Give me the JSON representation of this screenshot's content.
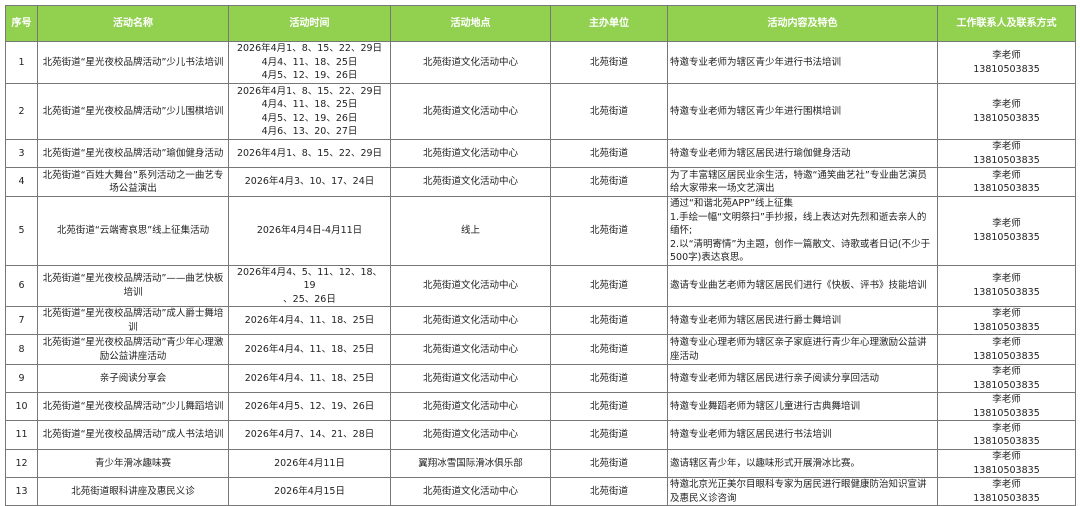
{
  "header_color": "#92d050",
  "columns": [
    "序号",
    "活动名称",
    "活动时间",
    "活动地点",
    "主办单位",
    "活动内容及特色",
    "工作联系人及联系方式"
  ],
  "rows": [
    {
      "no": "1",
      "name": "北苑街道“星光夜校品牌活动”少儿书法培训",
      "time": "2026年4月1、8、15、22、29日\n4月4、11、18、25日\n4月5、12、19、26日",
      "place": "北苑街道文化活动中心",
      "org": "北苑街道",
      "content": "特邀专业老师为辖区青少年进行书法培训",
      "contact": "李老师\n13810503835"
    },
    {
      "no": "2",
      "name": "北苑街道“星光夜校品牌活动”少儿围棋培训",
      "time": "2026年4月1、8、15、22、29日\n4月4、11、18、25日\n4月5、12、19、26日\n4月6、13、20、27日",
      "place": "北苑街道文化活动中心",
      "org": "北苑街道",
      "content": "特邀专业老师为辖区青少年进行围棋培训",
      "contact": "李老师\n13810503835"
    },
    {
      "no": "3",
      "name": "北苑街道“星光夜校品牌活动”瑜伽健身活动",
      "time": "2026年4月1、8、15、22、29日",
      "place": "北苑街道文化活动中心",
      "org": "北苑街道",
      "content": "特邀专业老师为辖区居民进行瑜伽健身活动",
      "contact": "李老师\n13810503835"
    },
    {
      "no": "4",
      "name": "北苑街道“百姓大舞台”系列活动之一曲艺专场公益演出",
      "time": "2026年4月3、10、17、24日",
      "place": "北苑街道文化活动中心",
      "org": "北苑街道",
      "content": "为了丰富辖区居民业余生活，特邀“通笑曲艺社”专业曲艺演员给大家带来一场文艺演出",
      "contact": "李老师\n13810503835"
    },
    {
      "no": "5",
      "name": "北苑街道“云端寄哀思”线上征集活动",
      "time": "2026年4月4日-4月11日",
      "place": "线上",
      "org": "北苑街道",
      "content": "通过“和谐北苑APP”线上征集\n1.手绘一幅“文明祭扫”手抄报，线上表达对先烈和逝去亲人的缅怀;\n2.以“清明寄情”为主题，创作一篇散文、诗歌或者日记(不少于500字)表达哀思。",
      "contact": "李老师\n13810503835"
    },
    {
      "no": "6",
      "name": "北苑街道“星光夜校品牌活动”——曲艺快板培训",
      "time": "2026年4月4、5、11、12、18、19\n、25、26日",
      "place": "北苑街道文化活动中心",
      "org": "北苑街道",
      "content": "邀请专业曲艺老师为辖区居民们进行《快板、评书》技能培训",
      "contact": "李老师\n13810503835"
    },
    {
      "no": "7",
      "name": "北苑街道“星光夜校品牌活动”成人爵士舞培训",
      "time": "2026年4月4、11、18、25日",
      "place": "北苑街道文化活动中心",
      "org": "北苑街道",
      "content": "特邀专业老师为辖区居民进行爵士舞培训",
      "contact": "李老师\n13810503835"
    },
    {
      "no": "8",
      "name": "北苑街道“星光夜校品牌活动”青少年心理激励公益讲座活动",
      "time": "2026年4月4、11、18、25日",
      "place": "北苑街道文化活动中心",
      "org": "北苑街道",
      "content": "特邀专业心理老师为辖区亲子家庭进行青少年心理激励公益讲座活动",
      "contact": "李老师\n13810503835"
    },
    {
      "no": "9",
      "name": "亲子阅读分享会",
      "time": "2026年4月4、11、18、25日",
      "place": "北苑街道文化活动中心",
      "org": "北苑街道",
      "content": "特邀专业老师为辖区居民进行亲子阅读分享回活动",
      "contact": "李老师\n13810503835"
    },
    {
      "no": "10",
      "name": "北苑街道“星光夜校品牌活动”少儿舞蹈培训",
      "time": "2026年4月5、12、19、26日",
      "place": "北苑街道文化活动中心",
      "org": "北苑街道",
      "content": "特邀专业舞蹈老师为辖区儿童进行古典舞培训",
      "contact": "李老师\n13810503835"
    },
    {
      "no": "11",
      "name": "北苑街道“星光夜校品牌活动”成人书法培训",
      "time": "2026年4月7、14、21、28日",
      "place": "北苑街道文化活动中心",
      "org": "北苑街道",
      "content": "特邀专业老师为辖区居民进行书法培训",
      "contact": "李老师\n13810503835"
    },
    {
      "no": "12",
      "name": "青少年滑冰趣味赛",
      "time": "2026年4月11日",
      "place": "翼翔冰雪国际滑冰俱乐部",
      "org": "北苑街道",
      "content": "邀请辖区青少年，以趣味形式开展滑冰比赛。",
      "contact": "李老师\n13810503835"
    },
    {
      "no": "13",
      "name": "北苑街道眼科讲座及惠民义诊",
      "time": "2026年4月15日",
      "place": "北苑街道文化活动中心",
      "org": "北苑街道",
      "content": "特邀北京光正美尔目眼科专家为居民进行眼健康防治知识宣讲及惠民义诊咨询",
      "contact": "李老师\n13810503835"
    }
  ]
}
